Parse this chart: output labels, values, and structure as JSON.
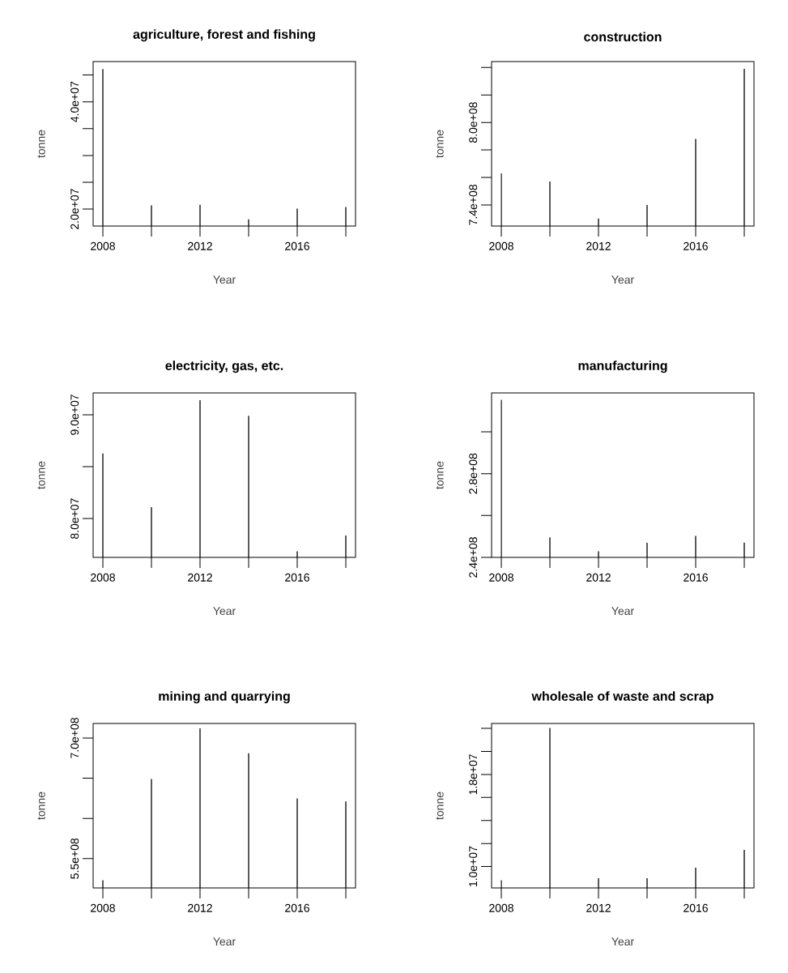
{
  "chart_data": [
    {
      "type": "bar",
      "title": "agriculture, forest and fishing",
      "xlabel": "Year",
      "ylabel": "tonne",
      "color": "#000000",
      "x": [
        2008,
        2010,
        2012,
        2014,
        2016,
        2018
      ],
      "values": [
        46100000,
        20700000,
        20800000,
        18100000,
        20100000,
        20400000
      ],
      "xlim": [
        2007.6,
        2018.4
      ],
      "ylim": [
        16840000,
        47500000
      ],
      "xticks": [
        2008,
        {
          "value": 2010,
          "label": null
        },
        2012,
        {
          "value": 2014,
          "label": null
        },
        2016,
        {
          "value": 2018,
          "label": null
        }
      ],
      "yticks": [
        {
          "value": 20000000,
          "label": "2.0e+07"
        },
        {
          "value": 25000000,
          "label": null
        },
        {
          "value": 30000000,
          "label": null
        },
        {
          "value": 35000000,
          "label": null
        },
        {
          "value": 40000000,
          "label": "4.0e+07"
        },
        {
          "value": 45000000,
          "label": null
        }
      ]
    },
    {
      "type": "bar",
      "title": "construction",
      "xlabel": "Year",
      "ylabel": "tonne",
      "color": "#000000",
      "x": [
        2008,
        2010,
        2012,
        2014,
        2016,
        2018
      ],
      "values": [
        763000000,
        757000000,
        730000000,
        740000000,
        788000000,
        839000000
      ],
      "xlim": [
        2007.6,
        2018.4
      ],
      "ylim": [
        724600000,
        844300000
      ],
      "xticks": [
        2008,
        {
          "value": 2010,
          "label": null
        },
        2012,
        {
          "value": 2014,
          "label": null
        },
        2016,
        {
          "value": 2018,
          "label": null
        }
      ],
      "yticks": [
        {
          "value": 740000000,
          "label": "7.4e+08"
        },
        {
          "value": 760000000,
          "label": null
        },
        {
          "value": 780000000,
          "label": null
        },
        {
          "value": 800000000,
          "label": "8.0e+08"
        },
        {
          "value": 820000000,
          "label": null
        },
        {
          "value": 840000000,
          "label": null
        }
      ]
    },
    {
      "type": "bar",
      "title": "electricity, gas, etc.",
      "xlabel": "Year",
      "ylabel": "tonne",
      "color": "#000000",
      "x": [
        2008,
        2010,
        2012,
        2014,
        2016,
        2018
      ],
      "values": [
        86260000,
        81100000,
        91390000,
        89900000,
        76840000,
        78370000
      ],
      "xlim": [
        2007.6,
        2018.4
      ],
      "ylim": [
        76260000,
        92100000
      ],
      "xticks": [
        2008,
        {
          "value": 2010,
          "label": null
        },
        2012,
        {
          "value": 2014,
          "label": null
        },
        2016,
        {
          "value": 2018,
          "label": null
        }
      ],
      "yticks": [
        {
          "value": 80000000,
          "label": "8.0e+07"
        },
        {
          "value": 85000000,
          "label": null
        },
        {
          "value": 90000000,
          "label": "9.0e+07"
        }
      ]
    },
    {
      "type": "bar",
      "title": "manufacturing",
      "xlabel": "Year",
      "ylabel": "tonne",
      "color": "#000000",
      "x": [
        2008,
        2010,
        2012,
        2014,
        2016,
        2018
      ],
      "values": [
        315300000,
        249600000,
        242900000,
        247000000,
        250300000,
        247100000
      ],
      "xlim": [
        2007.6,
        2018.4
      ],
      "ylim": [
        240000000,
        318600000
      ],
      "xticks": [
        2008,
        {
          "value": 2010,
          "label": null
        },
        2012,
        {
          "value": 2014,
          "label": null
        },
        2016,
        {
          "value": 2018,
          "label": null
        }
      ],
      "yticks": [
        {
          "value": 240000000,
          "label": "2.4e+08"
        },
        {
          "value": 260000000,
          "label": null
        },
        {
          "value": 280000000,
          "label": "2.8e+08"
        },
        {
          "value": 300000000,
          "label": null
        }
      ]
    },
    {
      "type": "bar",
      "title": "mining and quarrying",
      "xlabel": "Year",
      "ylabel": "tonne",
      "color": "#000000",
      "x": [
        2008,
        2010,
        2012,
        2014,
        2016,
        2018
      ],
      "values": [
        523000000,
        649000000,
        712000000,
        681000000,
        625000000,
        621000000
      ],
      "xlim": [
        2007.6,
        2018.4
      ],
      "ylim": [
        513500000,
        718100000
      ],
      "xticks": [
        2008,
        {
          "value": 2010,
          "label": null
        },
        2012,
        {
          "value": 2014,
          "label": null
        },
        2016,
        {
          "value": 2018,
          "label": null
        }
      ],
      "yticks": [
        {
          "value": 550000000,
          "label": "5.5e+08"
        },
        {
          "value": 600000000,
          "label": null
        },
        {
          "value": 650000000,
          "label": null
        },
        {
          "value": 700000000,
          "label": "7.0e+08"
        }
      ]
    },
    {
      "type": "bar",
      "title": "wholesale of waste and scrap",
      "xlabel": "Year",
      "ylabel": "tonne",
      "color": "#000000",
      "x": [
        2008,
        2010,
        2012,
        2014,
        2016,
        2018
      ],
      "values": [
        8810000,
        22040000,
        8980000,
        8980000,
        9900000,
        11450000
      ],
      "xlim": [
        2007.6,
        2018.4
      ],
      "ylim": [
        8140000,
        22430000
      ],
      "xticks": [
        2008,
        {
          "value": 2010,
          "label": null
        },
        2012,
        {
          "value": 2014,
          "label": null
        },
        2016,
        {
          "value": 2018,
          "label": null
        }
      ],
      "yticks": [
        {
          "value": 10000000,
          "label": "1.0e+07"
        },
        {
          "value": 12000000,
          "label": null
        },
        {
          "value": 14000000,
          "label": null
        },
        {
          "value": 16000000,
          "label": null
        },
        {
          "value": 18000000,
          "label": "1.8e+07"
        },
        {
          "value": 20000000,
          "label": null
        },
        {
          "value": 22000000,
          "label": null
        }
      ]
    }
  ]
}
